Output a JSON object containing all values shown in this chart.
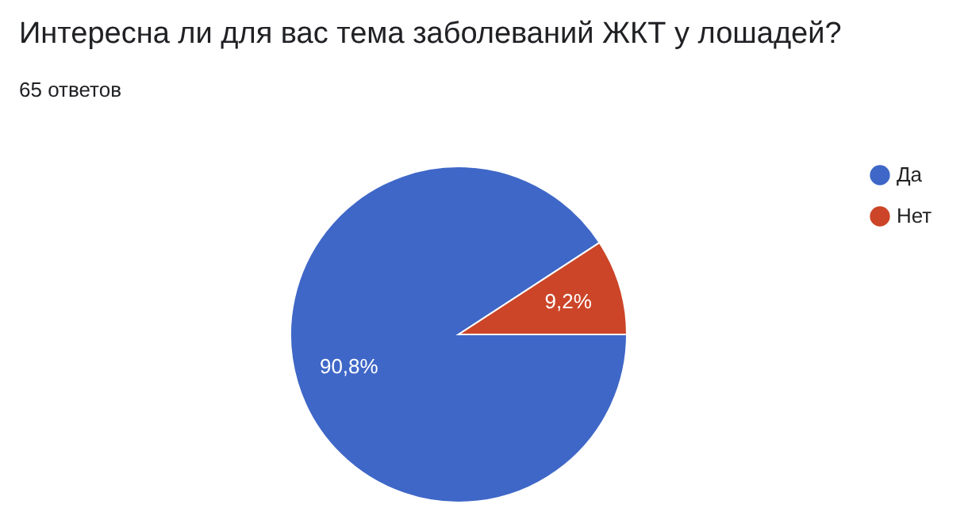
{
  "chart_data": {
    "type": "pie",
    "title": "Интересна ли для вас тема заболеваний ЖКТ у лошадей?",
    "subtitle": "65 ответов",
    "categories": [
      "Да",
      "Нет"
    ],
    "values": [
      90.8,
      9.2
    ],
    "colors": [
      "#3f67c7",
      "#cc4528"
    ],
    "value_labels": [
      "90,8%",
      "9,2%"
    ],
    "legend": "right"
  }
}
